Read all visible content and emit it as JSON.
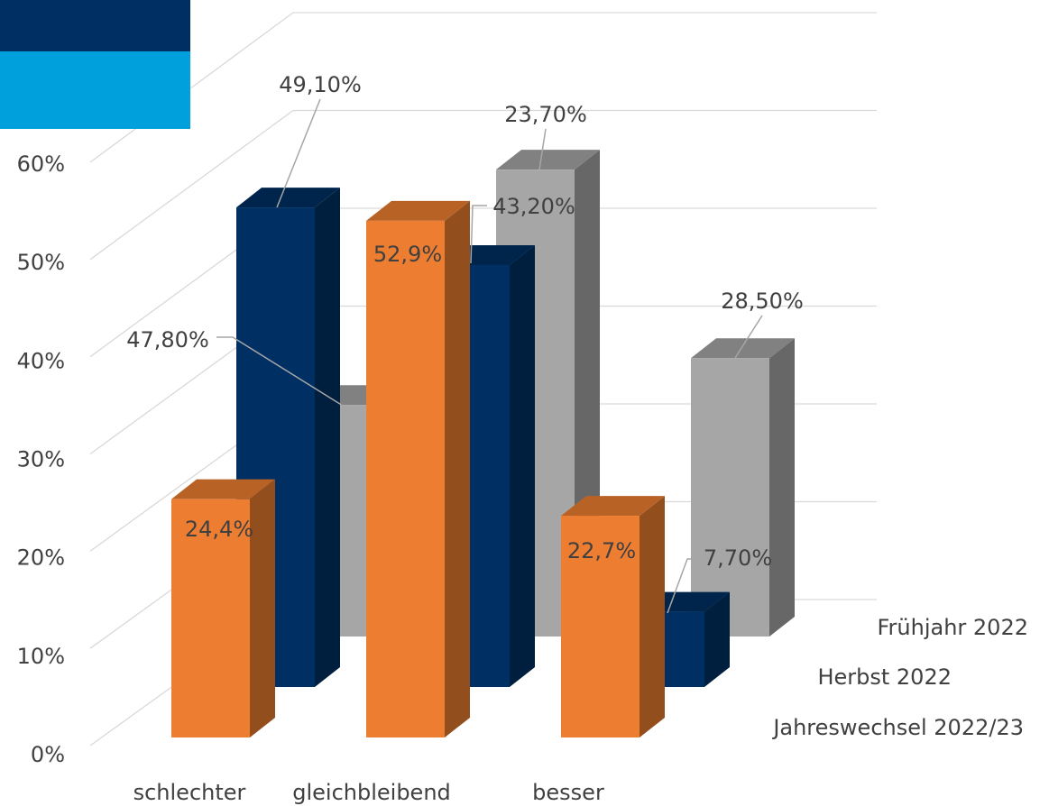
{
  "chart_data": {
    "type": "bar3d",
    "categories": [
      "schlechter",
      "gleichbleibend",
      "besser"
    ],
    "series": [
      {
        "name": "Jahreswechsel 2022/23",
        "color": "#ed7d31",
        "values": [
          24.4,
          52.9,
          22.7
        ],
        "value_labels": [
          "24,4%",
          "52,9%",
          "22,7%"
        ]
      },
      {
        "name": "Herbst 2022",
        "color": "#003063",
        "values": [
          49.1,
          43.2,
          7.7
        ],
        "value_labels": [
          "49,10%",
          "43,20%",
          "7,70%"
        ]
      },
      {
        "name": "Frühjahr 2022",
        "color": "#a6a6a6",
        "values": [
          23.7,
          47.8,
          28.5
        ],
        "value_labels": [
          "23,70%",
          "47,80%",
          "28,50%"
        ]
      }
    ],
    "ylim": [
      0,
      60
    ],
    "yticks": [
      {
        "value": 0,
        "label": "0%"
      },
      {
        "value": 10,
        "label": "10%"
      },
      {
        "value": 20,
        "label": "20%"
      },
      {
        "value": 30,
        "label": "30%"
      },
      {
        "value": 40,
        "label": "40%"
      },
      {
        "value": 50,
        "label": "50%"
      },
      {
        "value": 60,
        "label": "60%"
      }
    ],
    "grid": true
  }
}
